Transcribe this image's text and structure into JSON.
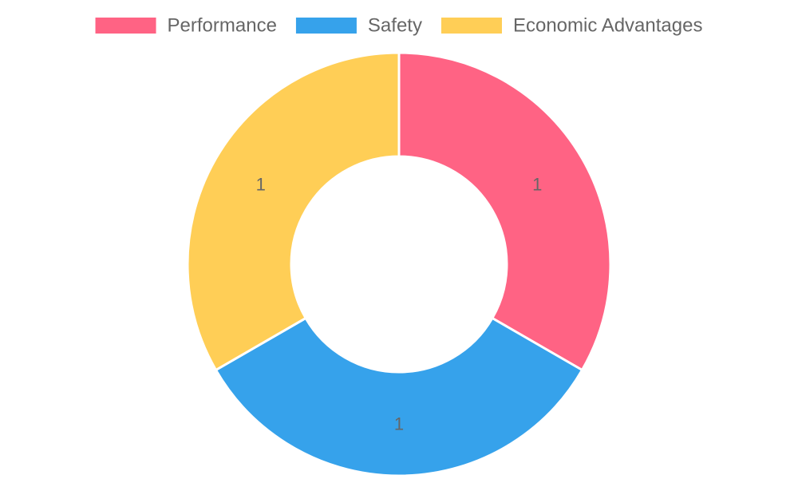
{
  "chart_data": {
    "type": "pie",
    "categories": [
      "Performance",
      "Safety",
      "Economic Advantages"
    ],
    "values": [
      1,
      1,
      1
    ],
    "colors": [
      "#ff6384",
      "#36a2eb",
      "#ffce56"
    ],
    "title": "",
    "legend_position": "top",
    "show_value_labels": true
  }
}
